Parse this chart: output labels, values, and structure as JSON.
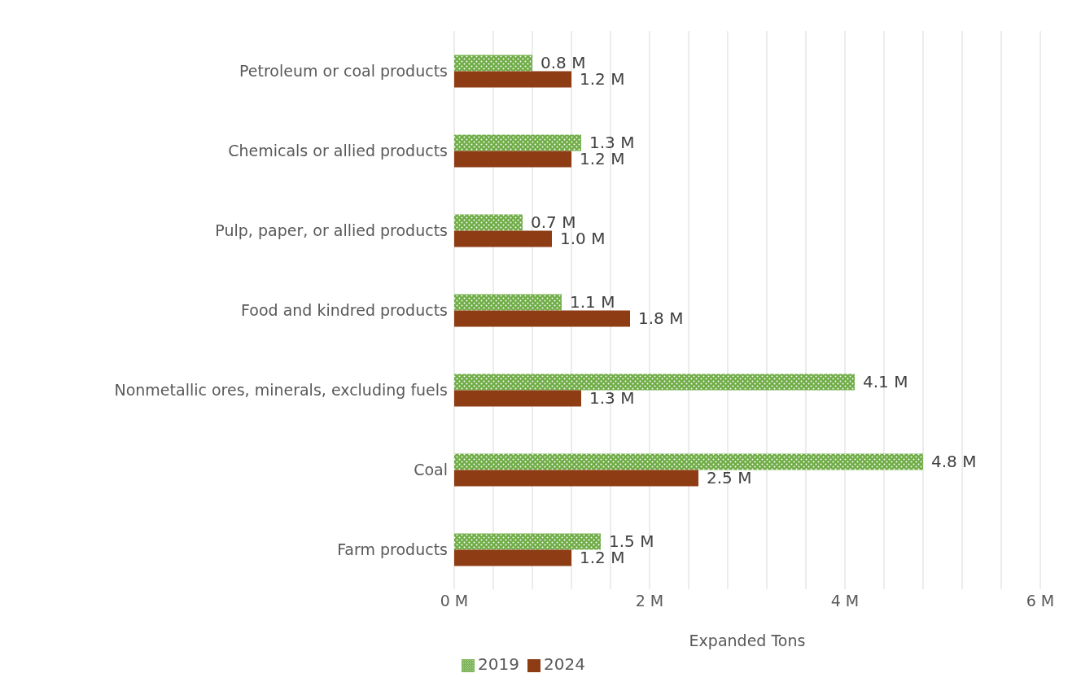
{
  "chart_data": {
    "type": "bar",
    "orientation": "horizontal",
    "xlabel": "Expanded Tons",
    "categories": [
      "Petroleum or coal products",
      "Chemicals or allied products",
      "Pulp, paper, or allied products",
      "Food and kindred products",
      "Nonmetallic ores, minerals, excluding fuels",
      "Coal",
      "Farm products"
    ],
    "series": [
      {
        "name": "2019",
        "color": "#70ad47",
        "values": [
          0.8,
          1.3,
          0.7,
          1.1,
          4.1,
          4.8,
          1.5
        ],
        "value_labels": [
          "0.8 M",
          "1.3 M",
          "0.7 M",
          "1.1 M",
          "4.1 M",
          "4.8 M",
          "1.5 M"
        ]
      },
      {
        "name": "2024",
        "color": "#8e3c14",
        "values": [
          1.2,
          1.2,
          1.0,
          1.8,
          1.3,
          2.5,
          1.2
        ],
        "value_labels": [
          "1.2 M",
          "1.2 M",
          "1.0 M",
          "1.8 M",
          "1.3 M",
          "2.5 M",
          "1.2 M"
        ]
      }
    ],
    "xlim": [
      0,
      6
    ],
    "xticks": [
      {
        "value": 0,
        "label": "0 M"
      },
      {
        "value": 0.4,
        "label": null
      },
      {
        "value": 0.8,
        "label": null
      },
      {
        "value": 1.2,
        "label": null
      },
      {
        "value": 1.6,
        "label": null
      },
      {
        "value": 2,
        "label": "2 M"
      },
      {
        "value": 2.4,
        "label": null
      },
      {
        "value": 2.8,
        "label": null
      },
      {
        "value": 3.2,
        "label": null
      },
      {
        "value": 3.6,
        "label": null
      },
      {
        "value": 4,
        "label": "4 M"
      },
      {
        "value": 4.4,
        "label": null
      },
      {
        "value": 4.8,
        "label": null
      },
      {
        "value": 5.2,
        "label": null
      },
      {
        "value": 5.6,
        "label": null
      },
      {
        "value": 6,
        "label": "6 M"
      }
    ],
    "grid": "x",
    "legend": "bottom"
  }
}
